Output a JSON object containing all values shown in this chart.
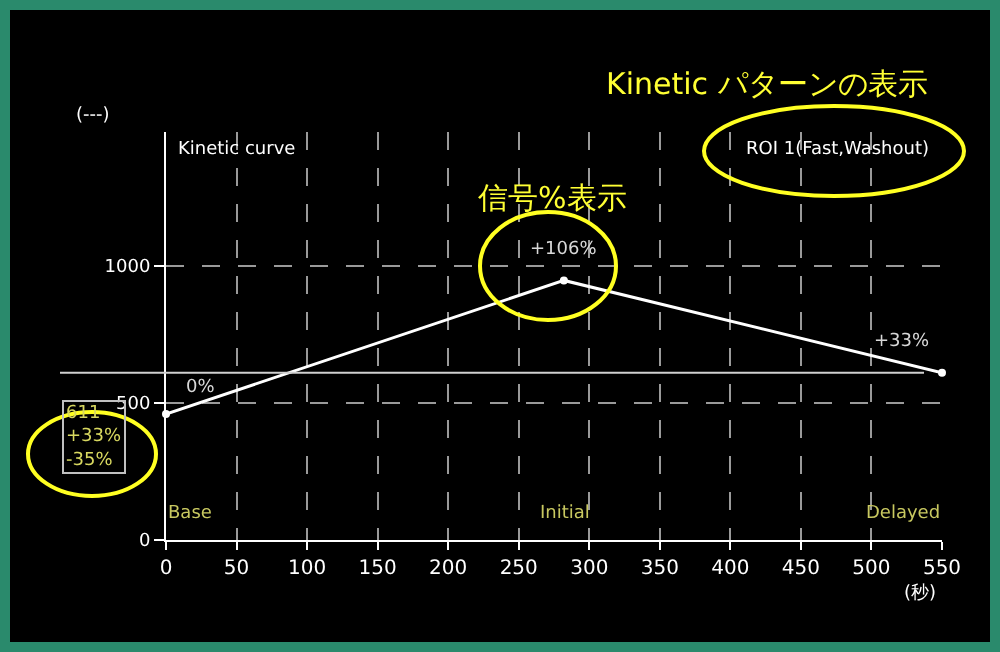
{
  "chart_data": {
    "type": "line",
    "title": "Kinetic curve",
    "subtitle": "ROI 1(Fast,Washout)",
    "xlabel": "(秒)",
    "ylabel": "(---)",
    "x": [
      0,
      282,
      550
    ],
    "series": [
      {
        "color": "#ffffff",
        "values": [
          460,
          948,
          611
        ]
      }
    ],
    "xlim": [
      0,
      550
    ],
    "xticks": [
      0,
      50,
      100,
      150,
      200,
      250,
      300,
      350,
      400,
      450,
      500,
      550
    ],
    "ylim": [
      0,
      1490
    ],
    "yticks": [
      0,
      500,
      1000
    ],
    "grid": true,
    "marker": "circle",
    "line_style": "solid",
    "ref_lines": [
      {
        "axis": "y",
        "value": 611,
        "color": "#d0d0d0"
      }
    ],
    "annotations": [
      "Kinetic パターンの表示",
      "信号%表示",
      "611\n+33%\n-35%",
      "Base",
      "Initial",
      "Delayed",
      {
        "text": "0%",
        "x": 0,
        "y": 460
      },
      {
        "text": "+106%",
        "x": 282,
        "y": 948
      },
      {
        "text": "+33%",
        "x": 550,
        "y": 611
      }
    ]
  }
}
